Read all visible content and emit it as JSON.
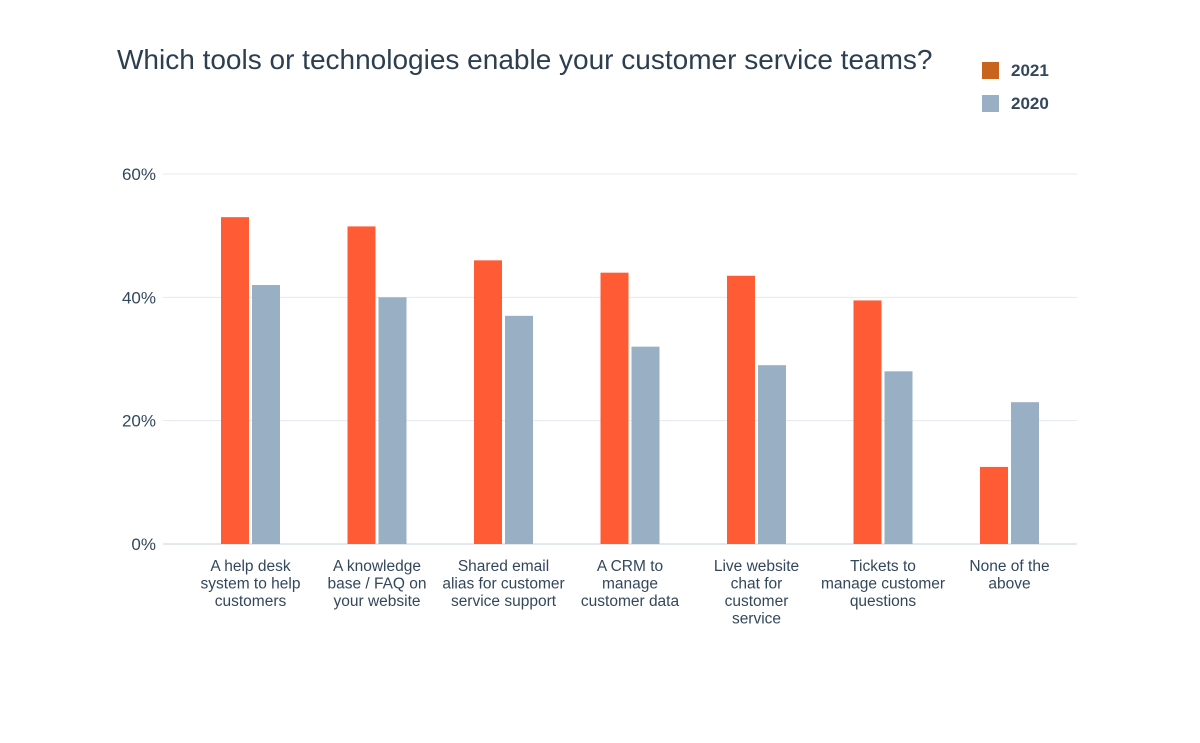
{
  "chart_data": {
    "type": "bar",
    "title": "Which tools or technologies enable your customer service teams?",
    "xlabel": "",
    "ylabel": "",
    "ylim": [
      0,
      60
    ],
    "grid": true,
    "legend_position": "top-right",
    "yticks": [
      "0%",
      "20%",
      "40%",
      "60%"
    ],
    "categories": [
      [
        "A help desk",
        "system to help",
        "customers"
      ],
      [
        "A knowledge",
        "base / FAQ on",
        "your website"
      ],
      [
        "Shared email",
        "alias for customer",
        "service support"
      ],
      [
        "A CRM to",
        "manage",
        "customer data"
      ],
      [
        "Live website",
        "chat for",
        "customer",
        "service"
      ],
      [
        "Tickets to",
        "manage customer",
        "questions"
      ],
      [
        "None of the",
        "above"
      ]
    ],
    "series": [
      {
        "name": "2021",
        "color": "#ff5c35",
        "values": [
          53,
          51.5,
          46,
          44,
          43.5,
          39.5,
          12.5
        ]
      },
      {
        "name": "2020",
        "color": "#99afc4",
        "values": [
          42,
          40,
          37,
          32,
          29,
          28,
          23
        ]
      }
    ],
    "legend": [
      {
        "label": "2021",
        "color": "#c8641e"
      },
      {
        "label": "2020",
        "color": "#99afc4"
      }
    ]
  }
}
